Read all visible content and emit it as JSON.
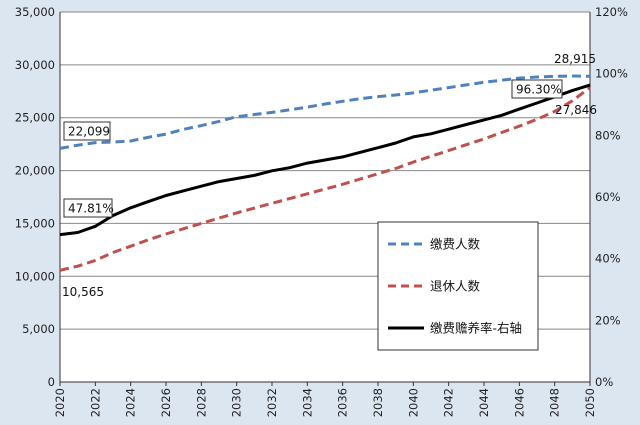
{
  "chart_data": {
    "type": "line",
    "x": [
      2020,
      2021,
      2022,
      2023,
      2024,
      2025,
      2026,
      2027,
      2028,
      2029,
      2030,
      2031,
      2032,
      2033,
      2034,
      2035,
      2036,
      2037,
      2038,
      2039,
      2040,
      2041,
      2042,
      2043,
      2044,
      2045,
      2046,
      2047,
      2048,
      2049,
      2050
    ],
    "x_ticks": [
      "2020",
      "2022",
      "2024",
      "2026",
      "2028",
      "2030",
      "2032",
      "2034",
      "2036",
      "2038",
      "2040",
      "2042",
      "2044",
      "2046",
      "2048",
      "2050"
    ],
    "ylim": [
      0,
      35000
    ],
    "y_ticks": [
      "0",
      "5,000",
      "10,000",
      "15,000",
      "20,000",
      "25,000",
      "30,000",
      "35,000"
    ],
    "y2lim": [
      0,
      1.2
    ],
    "y2_ticks": [
      "0%",
      "20%",
      "40%",
      "60%",
      "80%",
      "100%",
      "120%"
    ],
    "grid": true,
    "legend_position": "right-middle",
    "series": [
      {
        "name": "缴费人数",
        "axis": "left",
        "color": "#4f81bd",
        "dash": "dashed",
        "values": [
          22099,
          22400,
          22650,
          22700,
          22800,
          23150,
          23450,
          23900,
          24250,
          24650,
          25100,
          25300,
          25500,
          25750,
          26000,
          26300,
          26550,
          26800,
          27000,
          27150,
          27350,
          27600,
          27850,
          28100,
          28350,
          28550,
          28750,
          28850,
          28915,
          28950,
          28915
        ]
      },
      {
        "name": "退休人数",
        "axis": "left",
        "color": "#c0504d",
        "dash": "dashed",
        "values": [
          10565,
          10950,
          11500,
          12250,
          12850,
          13450,
          14000,
          14500,
          15000,
          15500,
          16000,
          16450,
          16900,
          17350,
          17800,
          18250,
          18700,
          19200,
          19700,
          20200,
          20800,
          21350,
          21900,
          22450,
          23000,
          23600,
          24200,
          24850,
          25600,
          26600,
          27846
        ]
      },
      {
        "name": "缴费赡养率-右轴",
        "axis": "right",
        "color": "#000000",
        "dash": "solid",
        "values": [
          0.4781,
          0.485,
          0.505,
          0.54,
          0.565,
          0.585,
          0.605,
          0.62,
          0.635,
          0.65,
          0.66,
          0.67,
          0.685,
          0.695,
          0.71,
          0.72,
          0.73,
          0.745,
          0.76,
          0.775,
          0.795,
          0.805,
          0.82,
          0.835,
          0.85,
          0.865,
          0.885,
          0.905,
          0.925,
          0.945,
          0.963
        ]
      }
    ],
    "annotations": [
      {
        "text": "22,099",
        "boxed": true
      },
      {
        "text": "47.81%",
        "boxed": true
      },
      {
        "text": "10,565",
        "boxed": false
      },
      {
        "text": "28,915",
        "boxed": false
      },
      {
        "text": "96.30%",
        "boxed": true
      },
      {
        "text": "27,846",
        "boxed": false
      }
    ]
  }
}
